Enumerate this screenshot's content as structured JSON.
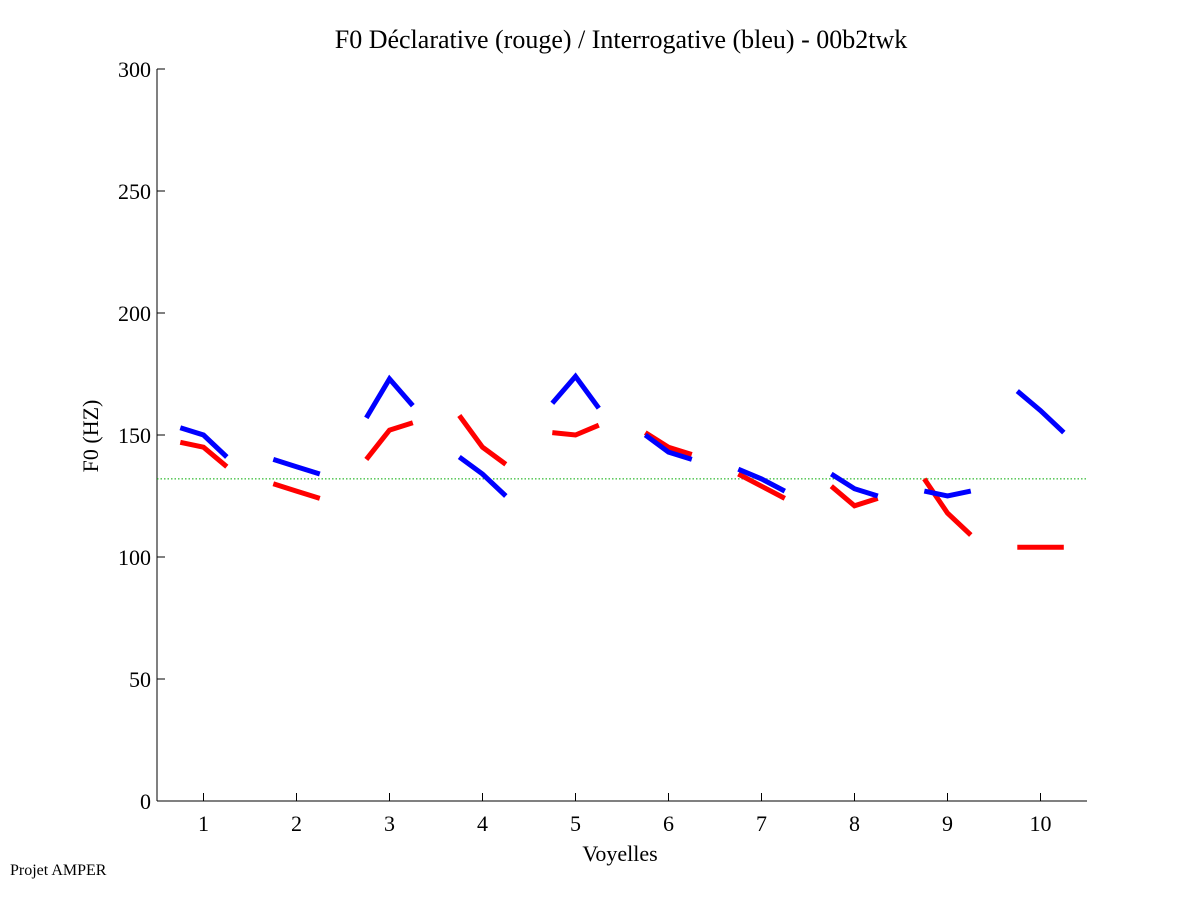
{
  "chart_data": {
    "type": "line",
    "title": "F0 Déclarative (rouge) / Interrogative (bleu) - 00b2twk",
    "xlabel": "Voyelles",
    "ylabel": "F0 (HZ)",
    "xlim": [
      0.5,
      10.5
    ],
    "ylim": [
      0,
      300
    ],
    "x_ticks": [
      "1",
      "2",
      "3",
      "4",
      "5",
      "6",
      "7",
      "8",
      "9",
      "10"
    ],
    "y_ticks": [
      "0",
      "50",
      "100",
      "150",
      "200",
      "250",
      "300"
    ],
    "reference_line": {
      "y": 132,
      "color": "#00aa00",
      "style": "dotted"
    },
    "grid": false,
    "series": [
      {
        "color": "#ff0000",
        "segments": [
          {
            "vowel": 1,
            "x": [
              0.75,
              1.0,
              1.25
            ],
            "y": [
              147,
              145,
              137
            ]
          },
          {
            "vowel": 2,
            "x": [
              1.75,
              2.0,
              2.25
            ],
            "y": [
              130,
              127,
              124
            ]
          },
          {
            "vowel": 3,
            "x": [
              2.75,
              3.0,
              3.25
            ],
            "y": [
              140,
              152,
              155
            ]
          },
          {
            "vowel": 4,
            "x": [
              3.75,
              4.0,
              4.25
            ],
            "y": [
              158,
              145,
              138
            ]
          },
          {
            "vowel": 5,
            "x": [
              4.75,
              5.0,
              5.25
            ],
            "y": [
              151,
              150,
              154
            ]
          },
          {
            "vowel": 6,
            "x": [
              5.75,
              6.0,
              6.25
            ],
            "y": [
              151,
              145,
              142
            ]
          },
          {
            "vowel": 7,
            "x": [
              6.75,
              7.0,
              7.25
            ],
            "y": [
              134,
              129,
              124
            ]
          },
          {
            "vowel": 8,
            "x": [
              7.75,
              8.0,
              8.25
            ],
            "y": [
              129,
              121,
              124
            ]
          },
          {
            "vowel": 9,
            "x": [
              8.75,
              9.0,
              9.25
            ],
            "y": [
              132,
              118,
              109
            ]
          },
          {
            "vowel": 10,
            "x": [
              9.75,
              10.0,
              10.25
            ],
            "y": [
              104,
              104,
              104
            ]
          }
        ]
      },
      {
        "color": "#0000ff",
        "segments": [
          {
            "vowel": 1,
            "x": [
              0.75,
              1.0,
              1.25
            ],
            "y": [
              153,
              150,
              141
            ]
          },
          {
            "vowel": 2,
            "x": [
              1.75,
              2.0,
              2.25
            ],
            "y": [
              140,
              137,
              134
            ]
          },
          {
            "vowel": 3,
            "x": [
              2.75,
              3.0,
              3.25
            ],
            "y": [
              157,
              173,
              162
            ]
          },
          {
            "vowel": 4,
            "x": [
              3.75,
              4.0,
              4.25
            ],
            "y": [
              141,
              134,
              125
            ]
          },
          {
            "vowel": 5,
            "x": [
              4.75,
              5.0,
              5.25
            ],
            "y": [
              163,
              174,
              161
            ]
          },
          {
            "vowel": 6,
            "x": [
              5.75,
              6.0,
              6.25
            ],
            "y": [
              150,
              143,
              140
            ]
          },
          {
            "vowel": 7,
            "x": [
              6.75,
              7.0,
              7.25
            ],
            "y": [
              136,
              132,
              127
            ]
          },
          {
            "vowel": 8,
            "x": [
              7.75,
              8.0,
              8.25
            ],
            "y": [
              134,
              128,
              125
            ]
          },
          {
            "vowel": 9,
            "x": [
              8.75,
              9.0,
              9.25
            ],
            "y": [
              127,
              125,
              127
            ]
          },
          {
            "vowel": 10,
            "x": [
              9.75,
              10.0,
              10.25
            ],
            "y": [
              168,
              160,
              151
            ]
          }
        ]
      }
    ]
  },
  "footer": {
    "credit": "Projet AMPER"
  }
}
